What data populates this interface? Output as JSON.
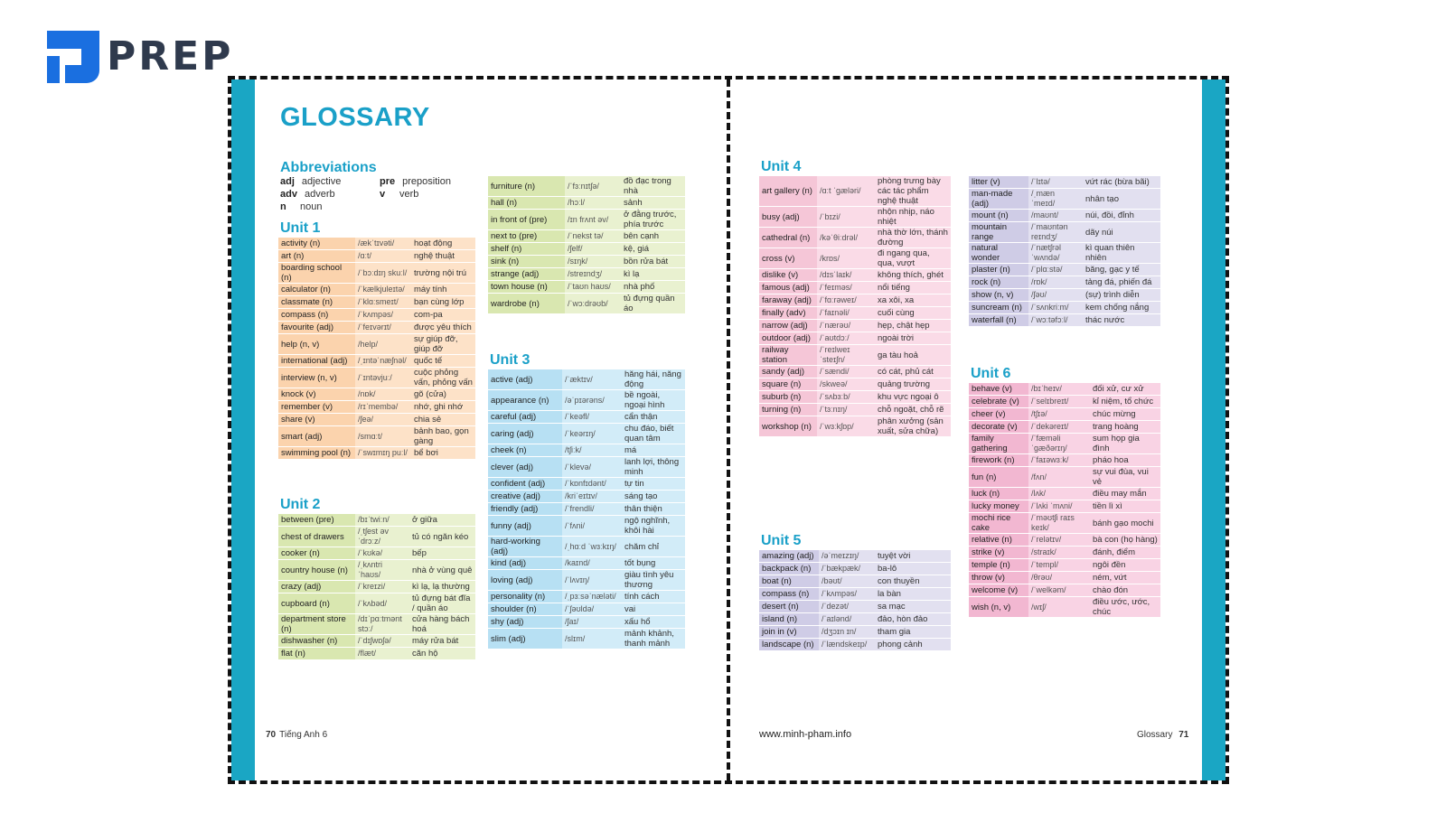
{
  "logo": {
    "text": "PREP",
    "color": "#1a6fe0"
  },
  "left_page": {
    "title": "GLOSSARY",
    "abbreviations": {
      "heading": "Abbreviations",
      "items": [
        {
          "abbr": "adj",
          "meaning": "adjective"
        },
        {
          "abbr": "adv",
          "meaning": "adverb"
        },
        {
          "abbr": "n",
          "meaning": "noun"
        },
        {
          "abbr": "pre",
          "meaning": "preposition"
        },
        {
          "abbr": "v",
          "meaning": "verb"
        }
      ]
    },
    "footer_num": "70",
    "footer_text": "Tiếng Anh 6"
  },
  "right_page": {
    "url": "www.minh-pham.info",
    "footer_text": "Glossary",
    "footer_num": "71"
  },
  "units": [
    {
      "heading": "Unit 1",
      "rows": [
        [
          "activity (n)",
          "/ækˈtɪvəti/",
          "hoạt động"
        ],
        [
          "art (n)",
          "/ɑːt/",
          "nghệ thuật"
        ],
        [
          "boarding school (n)",
          "/ˈbɔːdɪŋ skuːl/",
          "trường nội trú"
        ],
        [
          "calculator (n)",
          "/ˈkælkjuleɪtə/",
          "máy tính"
        ],
        [
          "classmate (n)",
          "/ˈklɑːsmeɪt/",
          "bạn cùng lớp"
        ],
        [
          "compass (n)",
          "/ˈkʌmpəs/",
          "com-pa"
        ],
        [
          "favourite (adj)",
          "/ˈfeɪvərɪt/",
          "được yêu thích"
        ],
        [
          "help (n, v)",
          "/help/",
          "sự giúp đỡ, giúp đỡ"
        ],
        [
          "international (adj)",
          "/ˌɪntəˈnæʃnəl/",
          "quốc tế"
        ],
        [
          "interview (n, v)",
          "/ˈɪntəvjuː/",
          "cuộc phỏng vấn, phỏng vấn"
        ],
        [
          "knock (v)",
          "/nɒk/",
          "gõ (cửa)"
        ],
        [
          "remember (v)",
          "/rɪˈmembə/",
          "nhớ, ghi nhớ"
        ],
        [
          "share (v)",
          "/ʃeə/",
          "chia sẻ"
        ],
        [
          "smart (adj)",
          "/smɑːt/",
          "bảnh bao, gọn gàng"
        ],
        [
          "swimming pool (n)",
          "/ˈswɪmɪŋ puːl/",
          "bể bơi"
        ]
      ]
    },
    {
      "heading": "Unit 2",
      "rows": [
        [
          "between (pre)",
          "/bɪˈtwiːn/",
          "ở giữa"
        ],
        [
          "chest of drawers",
          "/ˌtʃest əv ˈdrɔːz/",
          "tủ có ngăn kéo"
        ],
        [
          "cooker (n)",
          "/ˈkʊkə/",
          "bếp"
        ],
        [
          "country house (n)",
          "/ˌkʌntri ˈhaʊs/",
          "nhà ở vùng quê"
        ],
        [
          "crazy (adj)",
          "/ˈkreɪzi/",
          "kì lạ, lạ thường"
        ],
        [
          "cupboard (n)",
          "/ˈkʌbəd/",
          "tủ đựng bát đĩa / quần áo"
        ],
        [
          "department store (n)",
          "/dɪˈpɑːtmənt stɔː/",
          "cửa hàng bách hoá"
        ],
        [
          "dishwasher (n)",
          "/ˈdɪʃwɒʃə/",
          "máy rửa bát"
        ],
        [
          "flat (n)",
          "/flæt/",
          "căn hộ"
        ],
        [
          "furniture (n)",
          "/ˈfɜːnɪtʃə/",
          "đồ đạc trong nhà"
        ],
        [
          "hall (n)",
          "/hɔːl/",
          "sảnh"
        ],
        [
          "in front of (pre)",
          "/ɪn frʌnt əv/",
          "ở đằng trước, phía trước"
        ],
        [
          "next to (pre)",
          "/ˈnekst tə/",
          "bên cạnh"
        ],
        [
          "shelf (n)",
          "/ʃelf/",
          "kệ, giá"
        ],
        [
          "sink (n)",
          "/sɪŋk/",
          "bồn rửa bát"
        ],
        [
          "strange (adj)",
          "/streɪndʒ/",
          "kì lạ"
        ],
        [
          "town house (n)",
          "/ˈtaʊn haʊs/",
          "nhà phố"
        ],
        [
          "wardrobe (n)",
          "/ˈwɔːdrəʊb/",
          "tủ đựng quần áo"
        ]
      ]
    },
    {
      "heading": "Unit 3",
      "rows": [
        [
          "active (adj)",
          "/ˈæktɪv/",
          "hăng hái, năng động"
        ],
        [
          "appearance (n)",
          "/əˈpɪərəns/",
          "bề ngoài, ngoại hình"
        ],
        [
          "careful (adj)",
          "/ˈkeəfl/",
          "cẩn thận"
        ],
        [
          "caring (adj)",
          "/ˈkeərɪŋ/",
          "chu đáo, biết quan tâm"
        ],
        [
          "cheek (n)",
          "/tʃiːk/",
          "má"
        ],
        [
          "clever (adj)",
          "/ˈklevə/",
          "lanh lợi, thông minh"
        ],
        [
          "confident (adj)",
          "/ˈkɒnfɪdənt/",
          "tự tin"
        ],
        [
          "creative (adj)",
          "/kriˈeɪtɪv/",
          "sáng tạo"
        ],
        [
          "friendly (adj)",
          "/ˈfrendli/",
          "thân thiện"
        ],
        [
          "funny (adj)",
          "/ˈfʌni/",
          "ngộ nghĩnh, khôi hài"
        ],
        [
          "hard-working (adj)",
          "/ˌhɑːd ˈwɜːkɪŋ/",
          "chăm chỉ"
        ],
        [
          "kind (adj)",
          "/kaɪnd/",
          "tốt bụng"
        ],
        [
          "loving (adj)",
          "/ˈlʌvɪŋ/",
          "giàu tình yêu thương"
        ],
        [
          "personality (n)",
          "/ˌpɜːsəˈnæləti/",
          "tính cách"
        ],
        [
          "shoulder (n)",
          "/ˈʃəʊldə/",
          "vai"
        ],
        [
          "shy (adj)",
          "/ʃaɪ/",
          "xấu hổ"
        ],
        [
          "slim (adj)",
          "/slɪm/",
          "mảnh khảnh, thanh mảnh"
        ]
      ]
    },
    {
      "heading": "Unit 4",
      "rows": [
        [
          "art gallery (n)",
          "/ɑːt ˈɡæləri/",
          "phòng trưng bày các tác phẩm nghệ thuật"
        ],
        [
          "busy (adj)",
          "/ˈbɪzi/",
          "nhộn nhịp, náo nhiệt"
        ],
        [
          "cathedral (n)",
          "/kəˈθiːdrəl/",
          "nhà thờ lớn, thánh đường"
        ],
        [
          "cross (v)",
          "/krɒs/",
          "đi ngang qua, qua, vượt"
        ],
        [
          "dislike (v)",
          "/dɪsˈlaɪk/",
          "không thích, ghét"
        ],
        [
          "famous (adj)",
          "/ˈfeɪməs/",
          "nổi tiếng"
        ],
        [
          "faraway (adj)",
          "/ˈfɑːrəweɪ/",
          "xa xôi, xa"
        ],
        [
          "finally (adv)",
          "/ˈfaɪnəli/",
          "cuối cùng"
        ],
        [
          "narrow (adj)",
          "/ˈnærəʊ/",
          "hẹp, chật hẹp"
        ],
        [
          "outdoor (adj)",
          "/ˈaʊtdɔː/",
          "ngoài trời"
        ],
        [
          "railway station",
          "/ˈreɪlweɪ ˈsteɪʃn/",
          "ga tàu hoả"
        ],
        [
          "sandy (adj)",
          "/ˈsændi/",
          "có cát, phủ cát"
        ],
        [
          "square (n)",
          "/skweə/",
          "quảng trường"
        ],
        [
          "suburb (n)",
          "/ˈsʌbɜːb/",
          "khu vực ngoại ô"
        ],
        [
          "turning (n)",
          "/ˈtɜːnɪŋ/",
          "chỗ ngoặt, chỗ rẽ"
        ],
        [
          "workshop (n)",
          "/ˈwɜːkʃɒp/",
          "phân xưởng (sản xuất, sửa chữa)"
        ]
      ]
    },
    {
      "heading": "Unit 5",
      "rows": [
        [
          "amazing (adj)",
          "/əˈmeɪzɪŋ/",
          "tuyệt vời"
        ],
        [
          "backpack (n)",
          "/ˈbækpæk/",
          "ba-lô"
        ],
        [
          "boat (n)",
          "/bəʊt/",
          "con thuyền"
        ],
        [
          "compass (n)",
          "/ˈkʌmpəs/",
          "la bàn"
        ],
        [
          "desert (n)",
          "/ˈdezət/",
          "sa mạc"
        ],
        [
          "island (n)",
          "/ˈaɪlənd/",
          "đảo, hòn đảo"
        ],
        [
          "join in (v)",
          "/dʒɔɪn ɪn/",
          "tham gia"
        ],
        [
          "landscape (n)",
          "/ˈlændskeɪp/",
          "phong cảnh"
        ],
        [
          "litter (v)",
          "/ˈlɪtə/",
          "vứt rác (bừa bãi)"
        ],
        [
          "man-made (adj)",
          "/ˌmæn ˈmeɪd/",
          "nhân tạo"
        ],
        [
          "mount (n)",
          "/maʊnt/",
          "núi, đồi, đỉnh"
        ],
        [
          "mountain range",
          "/ˈmaʊntən reɪndʒ/",
          "dãy núi"
        ],
        [
          "natural wonder",
          "/ˈnætʃrəl ˈwʌndə/",
          "kì quan thiên nhiên"
        ],
        [
          "plaster (n)",
          "/ˈplɑːstə/",
          "băng, gạc y tế"
        ],
        [
          "rock (n)",
          "/rɒk/",
          "tảng đá, phiến đá"
        ],
        [
          "show (n, v)",
          "/ʃəʊ/",
          "(sự) trình diễn"
        ],
        [
          "suncream (n)",
          "/ˈsʌnkriːm/",
          "kem chống nắng"
        ],
        [
          "waterfall (n)",
          "/ˈwɔːtəfɔːl/",
          "thác nước"
        ]
      ]
    },
    {
      "heading": "Unit 6",
      "rows": [
        [
          "behave (v)",
          "/bɪˈheɪv/",
          "đối xử, cư xử"
        ],
        [
          "celebrate (v)",
          "/ˈselɪbreɪt/",
          "kỉ niệm, tổ chức"
        ],
        [
          "cheer (v)",
          "/tʃɪə/",
          "chúc mừng"
        ],
        [
          "decorate (v)",
          "/ˈdekəreɪt/",
          "trang hoàng"
        ],
        [
          "family gathering",
          "/ˈfæməli ˈɡæðərɪŋ/",
          "sum họp gia đình"
        ],
        [
          "firework (n)",
          "/ˈfaɪəwɜːk/",
          "pháo hoa"
        ],
        [
          "fun (n)",
          "/fʌn/",
          "sự vui đùa, vui vẻ"
        ],
        [
          "luck (n)",
          "/lʌk/",
          "điều may mắn"
        ],
        [
          "lucky money",
          "/ˈlʌki ˈmʌni/",
          "tiền lì xì"
        ],
        [
          "mochi rice cake",
          "/ˈməʊtʃi raɪs keɪk/",
          "bánh gạo mochi"
        ],
        [
          "relative (n)",
          "/ˈrelətɪv/",
          "bà con (họ hàng)"
        ],
        [
          "strike (v)",
          "/straɪk/",
          "đánh, điểm"
        ],
        [
          "temple (n)",
          "/ˈtempl/",
          "ngôi đền"
        ],
        [
          "throw (v)",
          "/θrəʊ/",
          "ném, vứt"
        ],
        [
          "welcome (v)",
          "/ˈwelkəm/",
          "chào đón"
        ],
        [
          "wish (n, v)",
          "/wɪʃ/",
          "điều ước, ước, chúc"
        ]
      ]
    }
  ]
}
